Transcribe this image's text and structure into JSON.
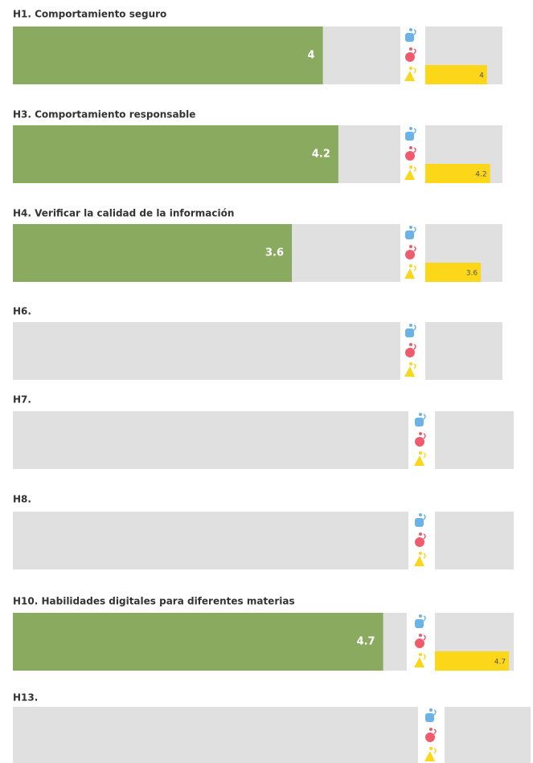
{
  "chart_data": [
    {
      "type": "bar",
      "title": "H1. Comportamiento seguro",
      "value": 4,
      "color": "#8aab5f",
      "detail_values": [
        null,
        null,
        4
      ],
      "detail_colors": [
        "#6bb3e6",
        "#ee5b6d",
        "#fcd619"
      ],
      "xlim": [
        0,
        5
      ]
    },
    {
      "type": "bar",
      "title": "H3. Comportamiento responsable",
      "value": 4.2,
      "color": "#8aab5f",
      "detail_values": [
        null,
        null,
        4.2
      ],
      "detail_colors": [
        "#6bb3e6",
        "#ee5b6d",
        "#fcd619"
      ],
      "xlim": [
        0,
        5
      ]
    },
    {
      "type": "bar",
      "title": "H4. Verificar la calidad de la información",
      "value": 3.6,
      "color": "#8aab5f",
      "detail_values": [
        null,
        null,
        3.6
      ],
      "detail_colors": [
        "#6bb3e6",
        "#ee5b6d",
        "#fcd619"
      ],
      "xlim": [
        0,
        5
      ]
    },
    {
      "type": "bar",
      "title": "H6.",
      "value": null,
      "color": "#8aab5f",
      "detail_values": [
        null,
        null,
        null
      ],
      "detail_colors": [
        "#6bb3e6",
        "#ee5b6d",
        "#fcd619"
      ],
      "xlim": [
        0,
        5
      ]
    },
    {
      "type": "bar",
      "title": "H7.",
      "value": null,
      "color": "#8aab5f",
      "detail_values": [
        null,
        null,
        null
      ],
      "detail_colors": [
        "#6bb3e6",
        "#ee5b6d",
        "#fcd619"
      ],
      "xlim": [
        0,
        5
      ]
    },
    {
      "type": "bar",
      "title": "H8.",
      "value": null,
      "color": "#8aab5f",
      "detail_values": [
        null,
        null,
        null
      ],
      "detail_colors": [
        "#6bb3e6",
        "#ee5b6d",
        "#fcd619"
      ],
      "xlim": [
        0,
        5
      ]
    },
    {
      "type": "bar",
      "title": "H10. Habilidades digitales para diferentes materias",
      "value": 4.7,
      "color": "#8aab5f",
      "detail_values": [
        null,
        null,
        4.7
      ],
      "detail_colors": [
        "#6bb3e6",
        "#ee5b6d",
        "#fcd619"
      ],
      "xlim": [
        0,
        5
      ]
    },
    {
      "type": "bar",
      "title": "H13.",
      "value": null,
      "color": "#8aab5f",
      "detail_values": [
        null,
        null,
        null
      ],
      "detail_colors": [
        "#6bb3e6",
        "#ee5b6d",
        "#fcd619"
      ],
      "xlim": [
        0,
        5
      ]
    }
  ]
}
